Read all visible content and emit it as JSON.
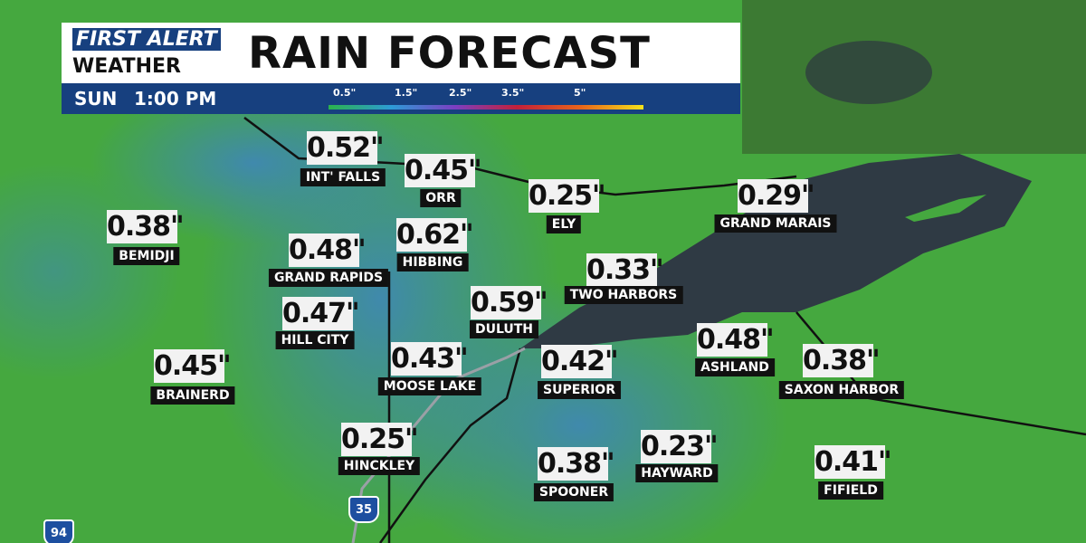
{
  "header": {
    "brand_top": "FIRST ALERT",
    "brand_bottom": "WEATHER",
    "title": "RAIN FORECAST",
    "day": "SUN",
    "time": "1:00 PM"
  },
  "legend": [
    "0.5\"",
    "1.5\"",
    "2.5\"",
    "3.5\"",
    "5\""
  ],
  "highways": [
    "94",
    "35"
  ],
  "cities": [
    {
      "name": "INT' FALLS",
      "amount": "0.52\""
    },
    {
      "name": "ORR",
      "amount": "0.45\""
    },
    {
      "name": "ELY",
      "amount": "0.25\""
    },
    {
      "name": "GRAND MARAIS",
      "amount": "0.29\""
    },
    {
      "name": "BEMIDJI",
      "amount": "0.38\""
    },
    {
      "name": "HIBBING",
      "amount": "0.62\""
    },
    {
      "name": "GRAND RAPIDS",
      "amount": "0.48\""
    },
    {
      "name": "TWO HARBORS",
      "amount": "0.33\""
    },
    {
      "name": "DULUTH",
      "amount": "0.59\""
    },
    {
      "name": "HILL CITY",
      "amount": "0.47\""
    },
    {
      "name": "ASHLAND",
      "amount": "0.48\""
    },
    {
      "name": "MOOSE LAKE",
      "amount": "0.43\""
    },
    {
      "name": "SUPERIOR",
      "amount": "0.42\""
    },
    {
      "name": "BRAINERD",
      "amount": "0.45\""
    },
    {
      "name": "SAXON HARBOR",
      "amount": "0.38\""
    },
    {
      "name": "HINCKLEY",
      "amount": "0.25\""
    },
    {
      "name": "HAYWARD",
      "amount": "0.23\""
    },
    {
      "name": "SPOONER",
      "amount": "0.38\""
    },
    {
      "name": "FIFIELD",
      "amount": "0.41\""
    }
  ]
}
